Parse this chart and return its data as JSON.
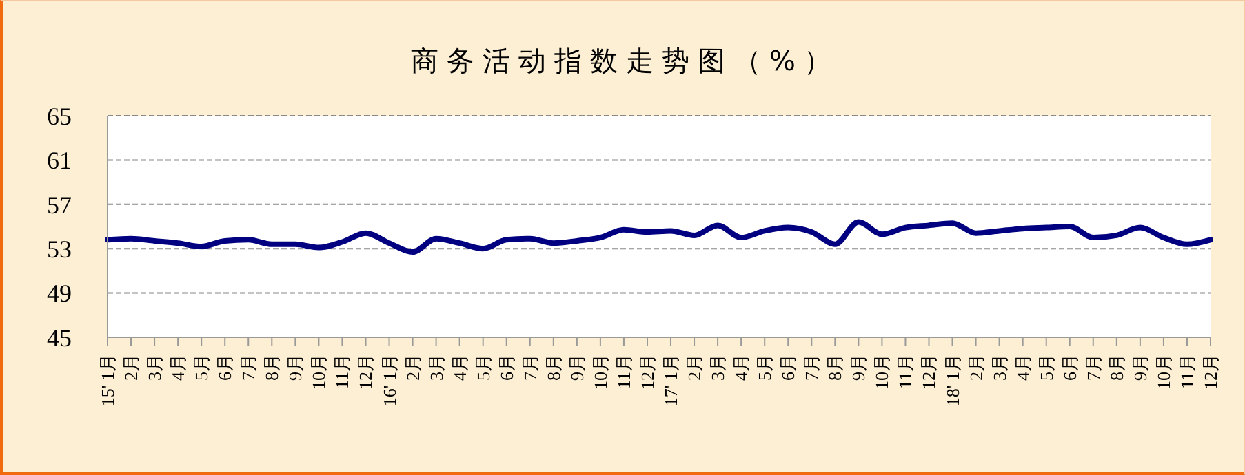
{
  "chart_data": {
    "type": "line",
    "title": "商务活动指数走势图（%）",
    "categories": [
      "15' 1月",
      "2月",
      "3月",
      "4月",
      "5月",
      "6月",
      "7月",
      "8月",
      "9月",
      "10月",
      "11月",
      "12月",
      "16' 1月",
      "2月",
      "3月",
      "4月",
      "5月",
      "6月",
      "7月",
      "8月",
      "9月",
      "10月",
      "11月",
      "12月",
      "17' 1月",
      "2月",
      "3月",
      "4月",
      "5月",
      "6月",
      "7月",
      "8月",
      "9月",
      "10月",
      "11月",
      "12月",
      "18' 1月",
      "2月",
      "3月",
      "4月",
      "5月",
      "6月",
      "7月",
      "8月",
      "9月",
      "10月",
      "11月",
      "12月"
    ],
    "series": [
      {
        "color": "#000080",
        "values": [
          53.8,
          53.9,
          53.7,
          53.5,
          53.2,
          53.7,
          53.8,
          53.4,
          53.4,
          53.1,
          53.6,
          54.4,
          53.5,
          52.7,
          53.9,
          53.5,
          53.0,
          53.8,
          53.9,
          53.5,
          53.7,
          54.0,
          54.7,
          54.5,
          54.6,
          54.2,
          55.1,
          54.0,
          54.6,
          54.9,
          54.5,
          53.4,
          55.4,
          54.3,
          54.9,
          55.1,
          55.3,
          54.4,
          54.6,
          54.8,
          54.9,
          55.0,
          54.0,
          54.2,
          54.9,
          54.0,
          53.4,
          53.8
        ]
      }
    ],
    "ylim": [
      45,
      65
    ],
    "yticks": [
      45,
      49,
      53,
      57,
      61,
      65
    ],
    "grid": "y",
    "legend": false,
    "marker": "none",
    "line_style": "solid"
  }
}
